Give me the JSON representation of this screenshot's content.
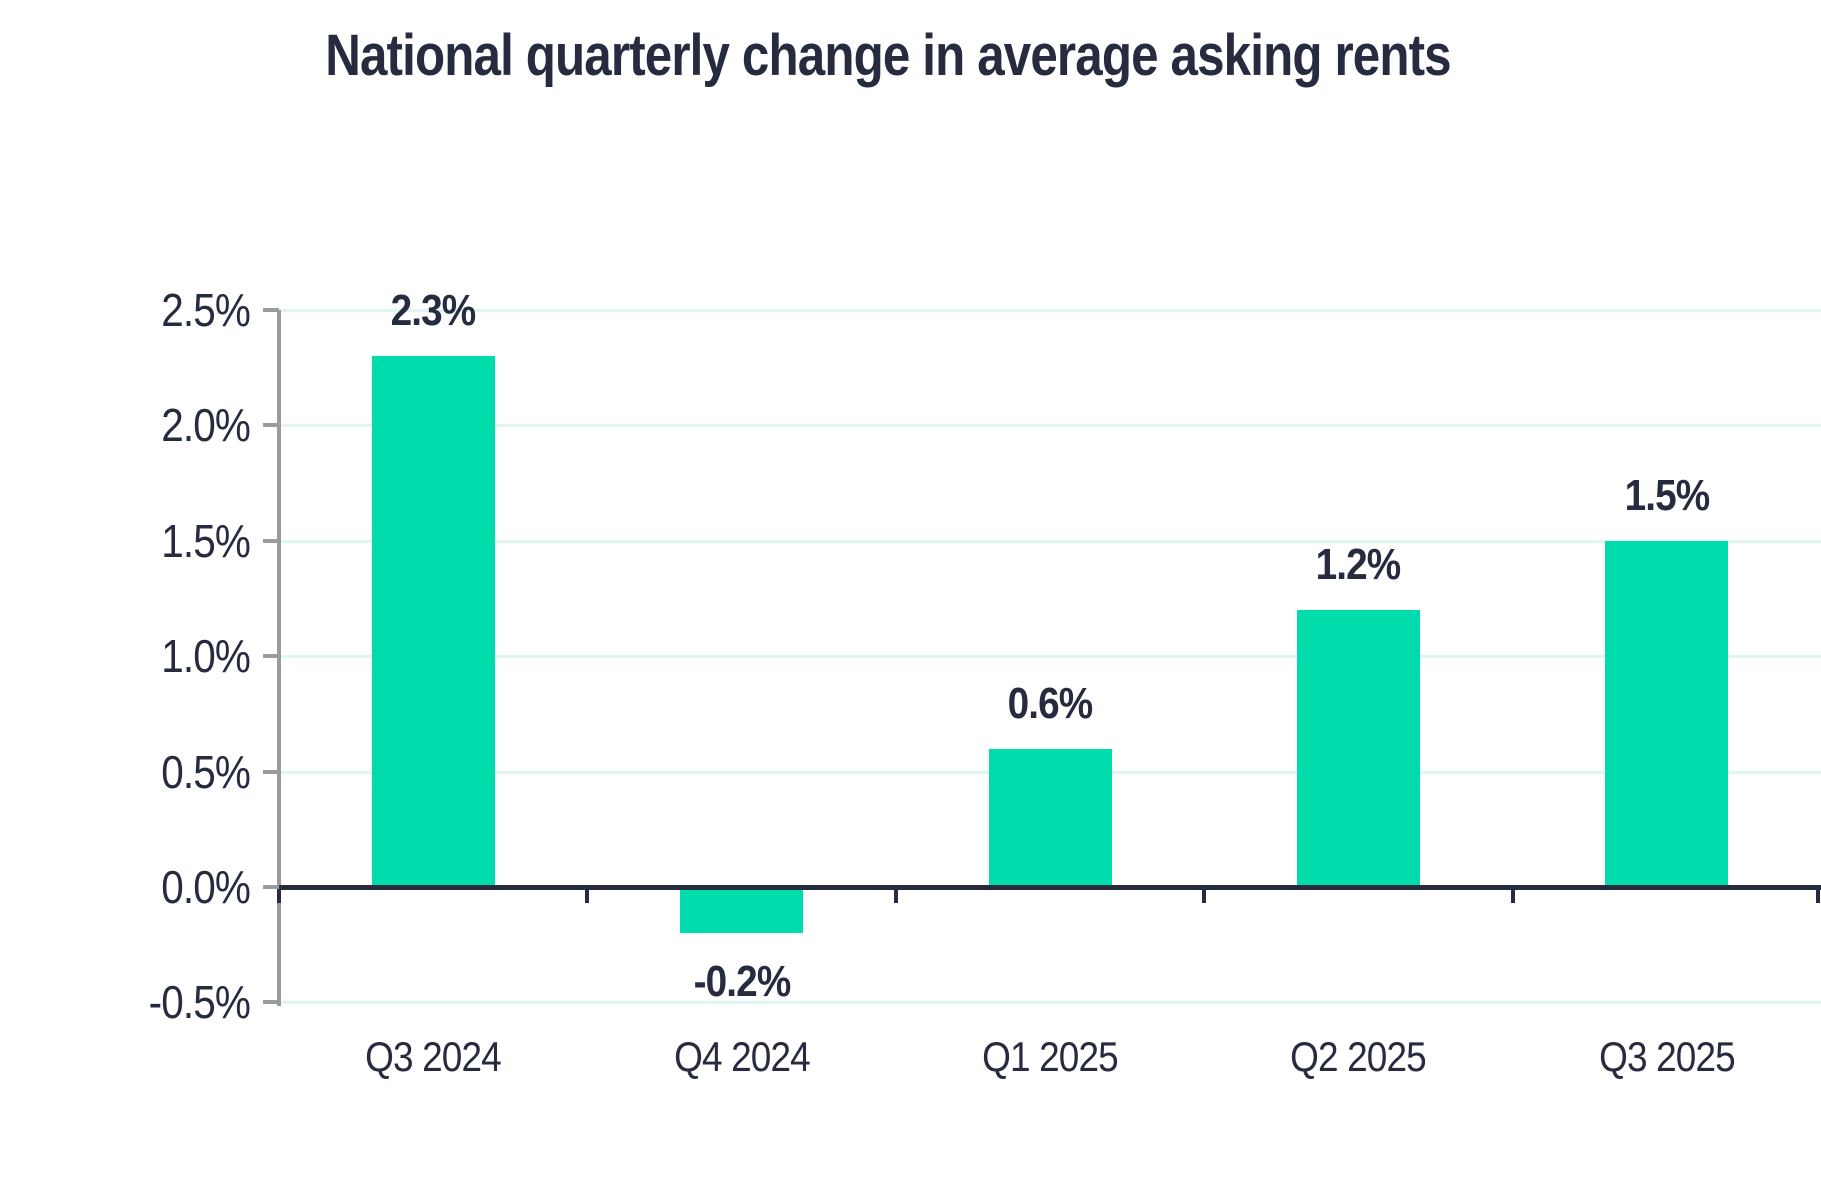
{
  "chart_data": {
    "type": "bar",
    "title": "National quarterly change in average asking rents",
    "categories": [
      "Q3 2024",
      "Q4 2024",
      "Q1 2025",
      "Q2 2025",
      "Q3 2025"
    ],
    "values": [
      2.3,
      -0.2,
      0.6,
      1.2,
      1.5
    ],
    "value_labels": [
      "2.3%",
      "-0.2%",
      "0.6%",
      "1.2%",
      "1.5%"
    ],
    "xlabel": "",
    "ylabel": "",
    "ylim": [
      -0.5,
      2.5
    ],
    "ytick_labels": [
      "2.5%",
      "2.0%",
      "1.5%",
      "1.0%",
      "0.5%",
      "0.0%",
      "-0.5%"
    ],
    "ytick_values": [
      2.5,
      2.0,
      1.5,
      1.0,
      0.5,
      0.0,
      -0.5
    ],
    "grid": "horizontal",
    "legend": "none"
  },
  "colors": {
    "bar": "#00dcac",
    "gridline": "#dff7f2",
    "axis_gray": "#9b9b9b",
    "navy": "#262b40",
    "background": "#ffffff"
  }
}
